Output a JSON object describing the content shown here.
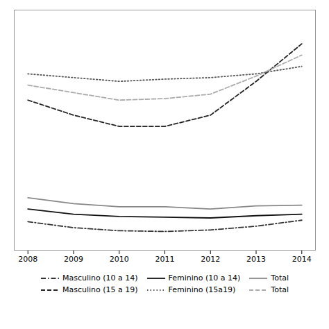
{
  "chart_data": {
    "type": "line",
    "x": [
      2008,
      2009,
      2010,
      2011,
      2012,
      2013,
      2014
    ],
    "series": [
      {
        "name": "Masculino (10 a 14)",
        "color": "#333333",
        "line_style": "dashdot",
        "values": [
          3.8,
          3.0,
          2.6,
          2.5,
          2.7,
          3.2,
          4.0
        ]
      },
      {
        "name": "Feminino (10 a 14)",
        "color": "#111111",
        "line_style": "solid",
        "values": [
          5.5,
          4.8,
          4.5,
          4.4,
          4.3,
          4.6,
          4.8
        ]
      },
      {
        "name": "Total",
        "color": "#888888",
        "line_style": "solid",
        "values": [
          7.0,
          6.2,
          5.8,
          5.8,
          5.5,
          5.9,
          6.0
        ]
      },
      {
        "name": "Masculino (15 a 19)",
        "color": "#222222",
        "line_style": "dashed",
        "values": [
          20.0,
          18.0,
          16.5,
          16.5,
          18.0,
          22.5,
          27.5
        ]
      },
      {
        "name": "Feminino (15a19)",
        "color": "#555555",
        "line_style": "dotted",
        "values": [
          23.5,
          23.0,
          22.5,
          22.8,
          23.0,
          23.5,
          24.5
        ]
      },
      {
        "name": "Total",
        "color": "#aaaaaa",
        "line_style": "dashed",
        "values": [
          22.0,
          21.0,
          20.0,
          20.2,
          20.8,
          23.2,
          26.0
        ]
      }
    ],
    "xlim": [
      2007.7,
      2014.3
    ],
    "ylim": [
      0,
      32
    ],
    "xticks": [
      2008,
      2009,
      2010,
      2011,
      2012,
      2013,
      2014
    ],
    "yticks": [],
    "tick_labels": "x",
    "grid": false,
    "legend": "bottom"
  }
}
